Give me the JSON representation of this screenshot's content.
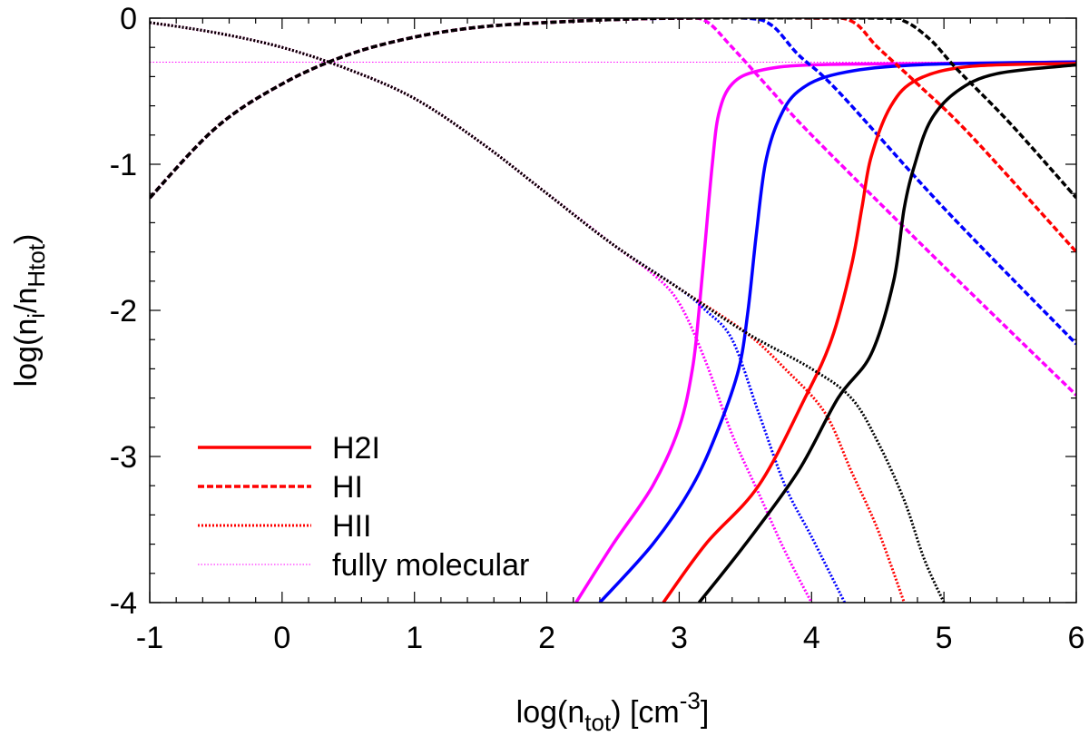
{
  "chart_data": {
    "type": "line",
    "xlabel": "log(n_tot) [cm^-3]",
    "ylabel": "log(n_i/n_Htot)",
    "x_label_parts": {
      "pre": "log(n",
      "sub": "tot",
      "mid": ") [cm",
      "sup": "-3",
      "post": "]"
    },
    "y_label_parts": {
      "pre": "log(n",
      "sub1": "i",
      "mid": "/n",
      "sub2": "Htot",
      "post": ")"
    },
    "xlim": [
      -1,
      6
    ],
    "ylim": [
      -4,
      0
    ],
    "xticks": [
      -1,
      0,
      1,
      2,
      3,
      4,
      5,
      6
    ],
    "yticks": [
      0,
      -1,
      -2,
      -3,
      -4
    ],
    "xtick_labels": [
      "-1",
      "0",
      "1",
      "2",
      "3",
      "4",
      "5",
      "6"
    ],
    "ytick_labels": [
      "0",
      "-1",
      "-2",
      "-3",
      "-4"
    ],
    "legend": {
      "position": "bottom-left",
      "entries": [
        {
          "label": "H2I",
          "style": "solid",
          "color": "#ff0000"
        },
        {
          "label": "HI",
          "style": "dashed",
          "color": "#ff0000"
        },
        {
          "label": "HII",
          "style": "dotted",
          "color": "#ff0000"
        },
        {
          "label": "fully molecular",
          "style": "thin-dotted",
          "color": "#ff00ff"
        }
      ]
    },
    "reference_line": {
      "name": "fully molecular",
      "y": -0.301,
      "color": "#ff00ff"
    },
    "series": [
      {
        "name": "H2I (magenta)",
        "species": "H2I",
        "style": "solid",
        "color": "#ff00ff",
        "points": [
          [
            2.22,
            -4.0
          ],
          [
            2.5,
            -3.6
          ],
          [
            2.8,
            -3.2
          ],
          [
            3.0,
            -2.8
          ],
          [
            3.1,
            -2.4
          ],
          [
            3.15,
            -2.0
          ],
          [
            3.2,
            -1.5
          ],
          [
            3.25,
            -1.0
          ],
          [
            3.3,
            -0.65
          ],
          [
            3.4,
            -0.45
          ],
          [
            3.6,
            -0.36
          ],
          [
            4.0,
            -0.32
          ],
          [
            5.0,
            -0.31
          ],
          [
            6.0,
            -0.3
          ]
        ]
      },
      {
        "name": "HI (magenta)",
        "species": "HI",
        "style": "dashed",
        "color": "#ff00ff",
        "points": [
          [
            -1.0,
            -1.23
          ],
          [
            -0.5,
            -0.75
          ],
          [
            0.0,
            -0.45
          ],
          [
            0.5,
            -0.25
          ],
          [
            1.0,
            -0.13
          ],
          [
            1.5,
            -0.06
          ],
          [
            2.0,
            -0.03
          ],
          [
            2.5,
            -0.01
          ],
          [
            3.0,
            0.0
          ],
          [
            3.2,
            -0.02
          ],
          [
            3.4,
            -0.2
          ],
          [
            3.7,
            -0.5
          ],
          [
            4.0,
            -0.8
          ],
          [
            5.0,
            -1.7
          ],
          [
            6.0,
            -2.58
          ]
        ]
      },
      {
        "name": "HII (magenta)",
        "species": "HII",
        "style": "dotted",
        "color": "#ff00ff",
        "points": [
          [
            -1.0,
            -0.03
          ],
          [
            -0.5,
            -0.1
          ],
          [
            0.0,
            -0.2
          ],
          [
            0.5,
            -0.35
          ],
          [
            1.0,
            -0.55
          ],
          [
            1.5,
            -0.85
          ],
          [
            2.0,
            -1.2
          ],
          [
            2.5,
            -1.55
          ],
          [
            2.8,
            -1.75
          ],
          [
            3.0,
            -1.95
          ],
          [
            3.2,
            -2.35
          ],
          [
            3.4,
            -2.85
          ],
          [
            3.6,
            -3.25
          ],
          [
            3.8,
            -3.65
          ],
          [
            4.0,
            -4.0
          ]
        ]
      },
      {
        "name": "H2I (blue)",
        "species": "H2I",
        "style": "solid",
        "color": "#0000ff",
        "points": [
          [
            2.4,
            -4.0
          ],
          [
            2.8,
            -3.6
          ],
          [
            3.1,
            -3.2
          ],
          [
            3.3,
            -2.8
          ],
          [
            3.45,
            -2.4
          ],
          [
            3.52,
            -2.0
          ],
          [
            3.58,
            -1.5
          ],
          [
            3.65,
            -1.0
          ],
          [
            3.75,
            -0.7
          ],
          [
            3.9,
            -0.5
          ],
          [
            4.2,
            -0.38
          ],
          [
            4.8,
            -0.32
          ],
          [
            6.0,
            -0.3
          ]
        ]
      },
      {
        "name": "HI (blue)",
        "species": "HI",
        "style": "dashed",
        "color": "#0000ff",
        "points": [
          [
            -1.0,
            -1.23
          ],
          [
            -0.5,
            -0.75
          ],
          [
            0.0,
            -0.45
          ],
          [
            0.5,
            -0.25
          ],
          [
            1.0,
            -0.13
          ],
          [
            1.5,
            -0.06
          ],
          [
            2.0,
            -0.03
          ],
          [
            2.5,
            -0.01
          ],
          [
            3.0,
            0.0
          ],
          [
            3.5,
            0.0
          ],
          [
            3.7,
            -0.05
          ],
          [
            3.9,
            -0.25
          ],
          [
            4.2,
            -0.5
          ],
          [
            5.0,
            -1.3
          ],
          [
            6.0,
            -2.23
          ]
        ]
      },
      {
        "name": "HII (blue)",
        "species": "HII",
        "style": "dotted",
        "color": "#0000ff",
        "points": [
          [
            -1.0,
            -0.03
          ],
          [
            -0.5,
            -0.1
          ],
          [
            0.0,
            -0.2
          ],
          [
            0.5,
            -0.35
          ],
          [
            1.0,
            -0.55
          ],
          [
            1.5,
            -0.85
          ],
          [
            2.0,
            -1.2
          ],
          [
            2.5,
            -1.55
          ],
          [
            3.0,
            -1.85
          ],
          [
            3.2,
            -2.0
          ],
          [
            3.4,
            -2.2
          ],
          [
            3.6,
            -2.7
          ],
          [
            3.8,
            -3.2
          ],
          [
            4.0,
            -3.55
          ],
          [
            4.25,
            -4.0
          ]
        ]
      },
      {
        "name": "H2I (red)",
        "species": "H2I",
        "style": "solid",
        "color": "#ff0000",
        "points": [
          [
            2.88,
            -4.0
          ],
          [
            3.2,
            -3.6
          ],
          [
            3.6,
            -3.2
          ],
          [
            3.95,
            -2.6
          ],
          [
            4.15,
            -2.2
          ],
          [
            4.3,
            -1.7
          ],
          [
            4.38,
            -1.3
          ],
          [
            4.45,
            -0.95
          ],
          [
            4.6,
            -0.6
          ],
          [
            4.8,
            -0.42
          ],
          [
            5.2,
            -0.33
          ],
          [
            6.0,
            -0.31
          ]
        ]
      },
      {
        "name": "HI (red)",
        "species": "HI",
        "style": "dashed",
        "color": "#ff0000",
        "points": [
          [
            -1.0,
            -1.23
          ],
          [
            -0.5,
            -0.75
          ],
          [
            0.0,
            -0.45
          ],
          [
            0.5,
            -0.25
          ],
          [
            1.0,
            -0.13
          ],
          [
            1.5,
            -0.06
          ],
          [
            2.0,
            -0.03
          ],
          [
            2.5,
            -0.01
          ],
          [
            3.0,
            0.0
          ],
          [
            4.0,
            0.0
          ],
          [
            4.3,
            -0.02
          ],
          [
            4.5,
            -0.2
          ],
          [
            4.8,
            -0.45
          ],
          [
            5.2,
            -0.8
          ],
          [
            6.0,
            -1.6
          ]
        ]
      },
      {
        "name": "HII (red)",
        "species": "HII",
        "style": "dotted",
        "color": "#ff0000",
        "points": [
          [
            -1.0,
            -0.03
          ],
          [
            -0.5,
            -0.1
          ],
          [
            0.0,
            -0.2
          ],
          [
            0.5,
            -0.35
          ],
          [
            1.0,
            -0.55
          ],
          [
            1.5,
            -0.85
          ],
          [
            2.0,
            -1.2
          ],
          [
            2.5,
            -1.55
          ],
          [
            3.0,
            -1.85
          ],
          [
            3.5,
            -2.15
          ],
          [
            3.8,
            -2.4
          ],
          [
            4.1,
            -2.7
          ],
          [
            4.3,
            -3.1
          ],
          [
            4.5,
            -3.5
          ],
          [
            4.7,
            -4.0
          ]
        ]
      },
      {
        "name": "H2I (black)",
        "species": "H2I",
        "style": "solid",
        "color": "#000000",
        "points": [
          [
            3.15,
            -4.0
          ],
          [
            3.5,
            -3.6
          ],
          [
            3.9,
            -3.1
          ],
          [
            4.2,
            -2.6
          ],
          [
            4.45,
            -2.3
          ],
          [
            4.62,
            -1.8
          ],
          [
            4.7,
            -1.3
          ],
          [
            4.78,
            -1.0
          ],
          [
            4.9,
            -0.7
          ],
          [
            5.1,
            -0.5
          ],
          [
            5.4,
            -0.38
          ],
          [
            6.0,
            -0.32
          ]
        ]
      },
      {
        "name": "HI (black)",
        "species": "HI",
        "style": "dashed",
        "color": "#000000",
        "points": [
          [
            -1.0,
            -1.23
          ],
          [
            -0.5,
            -0.75
          ],
          [
            0.0,
            -0.45
          ],
          [
            0.5,
            -0.25
          ],
          [
            1.0,
            -0.13
          ],
          [
            1.5,
            -0.06
          ],
          [
            2.0,
            -0.03
          ],
          [
            2.5,
            -0.01
          ],
          [
            3.0,
            0.0
          ],
          [
            4.5,
            0.0
          ],
          [
            4.7,
            -0.02
          ],
          [
            4.9,
            -0.15
          ],
          [
            5.1,
            -0.35
          ],
          [
            5.5,
            -0.72
          ],
          [
            6.0,
            -1.23
          ]
        ]
      },
      {
        "name": "HII (black)",
        "species": "HII",
        "style": "dotted",
        "color": "#000000",
        "points": [
          [
            -1.0,
            -0.03
          ],
          [
            -0.5,
            -0.1
          ],
          [
            0.0,
            -0.2
          ],
          [
            0.5,
            -0.35
          ],
          [
            1.0,
            -0.55
          ],
          [
            1.5,
            -0.85
          ],
          [
            2.0,
            -1.2
          ],
          [
            2.5,
            -1.55
          ],
          [
            3.0,
            -1.85
          ],
          [
            3.5,
            -2.15
          ],
          [
            4.0,
            -2.4
          ],
          [
            4.3,
            -2.6
          ],
          [
            4.5,
            -2.9
          ],
          [
            4.7,
            -3.3
          ],
          [
            4.85,
            -3.7
          ],
          [
            5.0,
            -4.0
          ]
        ]
      }
    ]
  }
}
